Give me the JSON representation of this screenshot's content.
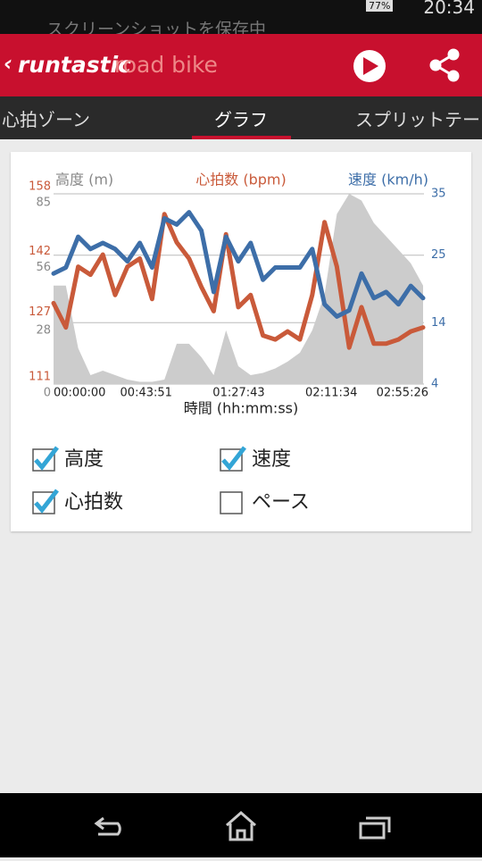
{
  "status_bar": {
    "notification": "スクリーンショットを保存中",
    "battery": "77%",
    "time": "20:34"
  },
  "app_bar": {
    "brand": "runtastic",
    "product": "road bike"
  },
  "tabs": [
    "心拍ゾーン",
    "グラフ",
    "スプリットテー"
  ],
  "active_tab": 1,
  "chart_data": {
    "type": "line",
    "ylabel": "高度 (m)",
    "y2label": "速度 (km/h)",
    "y3label": "心拍数 (bpm)",
    "xlabel": "時間 (hh:mm:ss)",
    "x": [
      0,
      350,
      700,
      1050,
      1400,
      1750,
      2100,
      2450,
      2800,
      3150,
      3500,
      3850,
      4200,
      4550,
      4900,
      5250,
      5600,
      5950,
      6300,
      6650,
      7000,
      7350,
      7700,
      8050,
      8400,
      8750,
      9100,
      9450,
      9800,
      10150,
      10500
    ],
    "xlim": [
      0,
      10526
    ],
    "xticks": [
      {
        "value": 0,
        "label": "00:00:00"
      },
      {
        "value": 2631,
        "label": "00:43:51"
      },
      {
        "value": 5263,
        "label": "01:27:43"
      },
      {
        "value": 7894,
        "label": "02:11:34"
      },
      {
        "value": 10526,
        "label": "02:55:26"
      }
    ],
    "ylim": [
      0,
      85
    ],
    "yticks": [
      0,
      28,
      56,
      85
    ],
    "y2lim": [
      4,
      35
    ],
    "y2ticks": [
      4,
      14,
      25,
      35
    ],
    "y3lim": [
      111,
      158
    ],
    "y3ticks": [
      111,
      127,
      142,
      158
    ],
    "grid": true,
    "series": [
      {
        "name": "高度",
        "checked": true,
        "color": "#cccccc",
        "axis": "y",
        "values": [
          44,
          44,
          16,
          4,
          6,
          4,
          2,
          1,
          1,
          2,
          18,
          18,
          12,
          4,
          24,
          8,
          4,
          5,
          7,
          10,
          14,
          24,
          40,
          76,
          85,
          82,
          72,
          66,
          60,
          54,
          44
        ]
      },
      {
        "name": "速度",
        "checked": true,
        "color": "#3d6ea8",
        "axis": "y2",
        "values": [
          22,
          23,
          28,
          26,
          27,
          26,
          24,
          27,
          23,
          31,
          30,
          32,
          29,
          19,
          28,
          24,
          27,
          21,
          23,
          23,
          23,
          26,
          17,
          15,
          16,
          22,
          18,
          19,
          17,
          20,
          18
        ]
      },
      {
        "name": "心拍数",
        "checked": true,
        "color": "#c95a3a",
        "axis": "y3",
        "values": [
          131,
          125,
          140,
          138,
          143,
          133,
          140,
          142,
          132,
          153,
          146,
          142,
          135,
          129,
          148,
          130,
          133,
          123,
          122,
          124,
          122,
          133,
          151,
          140,
          120,
          130,
          121,
          121,
          122,
          124,
          125
        ]
      }
    ],
    "toggles": [
      {
        "name": "ペース",
        "checked": false
      }
    ]
  }
}
